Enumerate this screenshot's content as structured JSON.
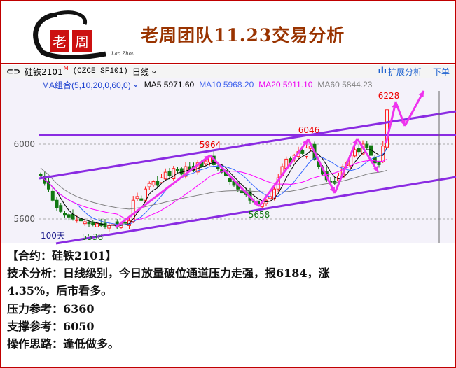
{
  "header": {
    "title": "老周团队11.23交易分析",
    "logo_text": [
      "老",
      "周"
    ],
    "logo_signature": "Lao Zhou"
  },
  "toolbar": {
    "link_icon": "chain-link-icon",
    "symbol": "硅铁2101",
    "symbol_badge": "M",
    "code": "(CZCE SF101)",
    "period": "日线",
    "expand_label": "扩展分析",
    "order_label": "下单"
  },
  "legend": {
    "ma_group": "MA组合(5,10,20,0,60,0)",
    "ma5": "MA5 5971.60",
    "ma10": "MA10 5968.20",
    "ma20": "MA20 5911.10",
    "ma60": "MA60 5844.23"
  },
  "colors": {
    "up": "#ff2020",
    "down": "#117711",
    "ma5": "#000000",
    "ma10": "#3366ff",
    "ma20": "#ff00ff",
    "ma60": "#808080",
    "channel": "#8a2be2",
    "arrow": "#ee33ee",
    "accent_red": "#c00000",
    "title": "#993300"
  },
  "chart_data": {
    "type": "candlestick",
    "y_ticks": [
      "6000",
      "5600"
    ],
    "period_label": "100天",
    "closes": [
      5830,
      5790,
      5760,
      5700,
      5660,
      5640,
      5620,
      5610,
      5600,
      5595,
      5590,
      5585,
      5575,
      5570,
      5575,
      5565,
      5560,
      5565,
      5570,
      5560,
      5575,
      5580,
      5590,
      5700,
      5720,
      5700,
      5760,
      5790,
      5800,
      5780,
      5820,
      5850,
      5830,
      5870,
      5860,
      5840,
      5880,
      5870,
      5860,
      5900,
      5880,
      5910,
      5930,
      5890,
      5870,
      5850,
      5830,
      5800,
      5780,
      5760,
      5740,
      5730,
      5700,
      5690,
      5680,
      5685,
      5700,
      5720,
      5760,
      5820,
      5880,
      5920,
      5900,
      5940,
      5960,
      5950,
      5980,
      5990,
      5920,
      5880,
      5840,
      5810,
      5800,
      5790,
      5830,
      5880,
      5900,
      5940,
      5970,
      5960,
      6000,
      5980,
      5940,
      5900,
      5890,
      5990,
      6184
    ],
    "annotations": [
      {
        "label": "5538",
        "type": "low"
      },
      {
        "label": "5964",
        "type": "high"
      },
      {
        "label": "5658",
        "type": "low"
      },
      {
        "label": "6046",
        "type": "high"
      },
      {
        "label": "6228",
        "type": "high"
      }
    ]
  },
  "analysis": {
    "contract": "【合约：硅铁2101】",
    "tech_line1": "技术分析：日线级别，今日放量破位通道压力走强，报6184，涨",
    "tech_line2": "4.35%，后市看多。",
    "resistance": "压力参考：6360",
    "support": "支撑参考：6050",
    "strategy": "操作思路：逢低做多。"
  }
}
